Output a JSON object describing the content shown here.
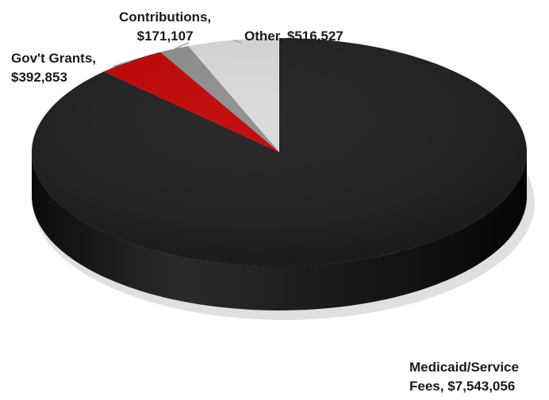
{
  "chart_data": {
    "type": "pie",
    "style": "3d",
    "start_angle_deg": 90,
    "direction": "clockwise",
    "slices": [
      {
        "name": "Medicaid/Service Fees",
        "value": 7543056,
        "color": "#1c1c1c",
        "label_lines": [
          "Medicaid/Service",
          "Fees,  $7,543,056"
        ]
      },
      {
        "name": "Gov't Grants",
        "value": 392853,
        "color": "#c00000",
        "label_lines": [
          "Gov't Grants,",
          "$392,853"
        ]
      },
      {
        "name": "Contributions",
        "value": 171107,
        "color": "#8c8c8c",
        "label_lines": [
          "Contributions,",
          "$171,107"
        ]
      },
      {
        "name": "Other",
        "value": 516527,
        "color": "#d9d9d9",
        "label_lines": [
          "Other,  $516,527"
        ]
      }
    ],
    "title": "",
    "legend": "none"
  }
}
